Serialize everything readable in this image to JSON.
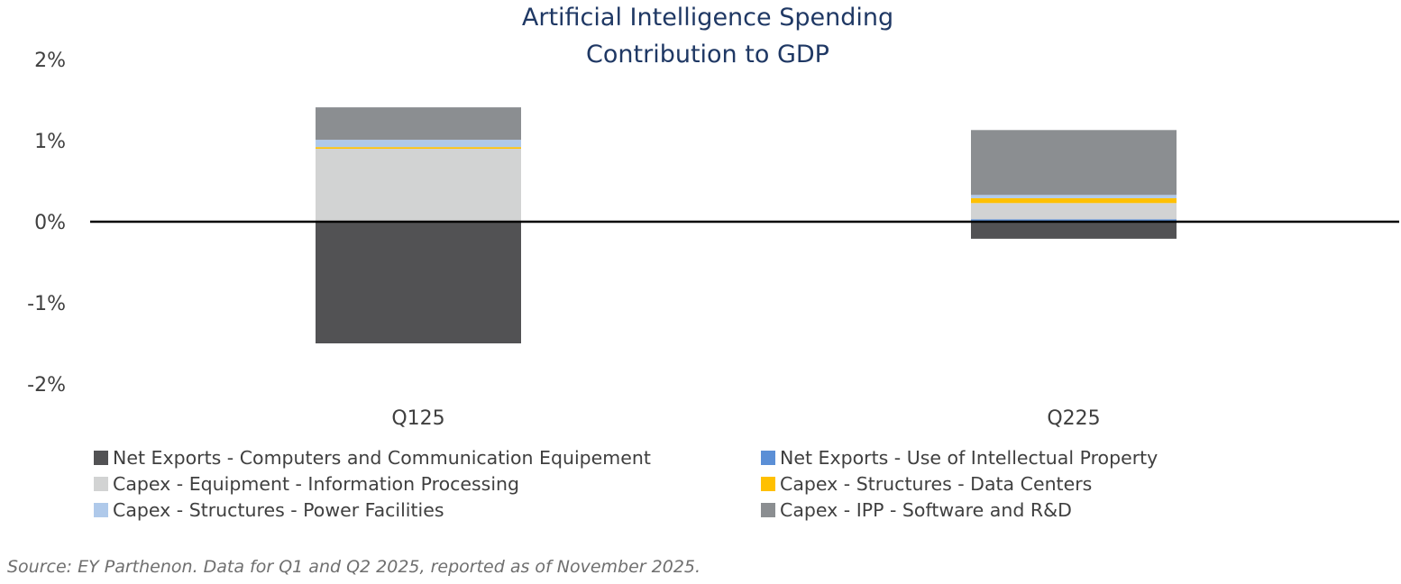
{
  "chart_data": {
    "type": "bar",
    "stacked": true,
    "title": "Artificial Intelligence Spending",
    "subtitle": "Contribution to GDP",
    "xlabel": "",
    "ylabel": "",
    "ylim": [
      -2,
      2
    ],
    "yticks": [
      2,
      1,
      0,
      -1,
      -2
    ],
    "ytick_labels": [
      "2%",
      "1%",
      "0%",
      "-1%",
      "-2%"
    ],
    "categories": [
      "Q125",
      "Q225"
    ],
    "grid": false,
    "legend_position": "bottom",
    "series": [
      {
        "name": "Net Exports - Computers and Communication Equipement",
        "color": "#525254",
        "values": [
          -1.5,
          -0.21
        ]
      },
      {
        "name": "Net Exports - Use of Intellectual Property",
        "color": "#5b8fd6",
        "values": [
          0.0,
          0.03
        ]
      },
      {
        "name": "Capex - Equipment - Information Processing",
        "color": "#d2d3d3",
        "values": [
          0.9,
          0.2
        ]
      },
      {
        "name": "Capex - Structures - Data Centers",
        "color": "#ffc000",
        "values": [
          0.02,
          0.06
        ]
      },
      {
        "name": "Capex - Structures - Power Facilities",
        "color": "#afc9ea",
        "values": [
          0.09,
          0.04
        ]
      },
      {
        "name": "Capex - IPP - Software and R&D",
        "color": "#8b8e91",
        "values": [
          0.4,
          0.8
        ]
      }
    ],
    "legend_order": [
      0,
      1,
      2,
      3,
      4,
      5
    ]
  },
  "source_note": "Source: EY Parthenon. Data for Q1 and Q2 2025, reported as of November 2025."
}
